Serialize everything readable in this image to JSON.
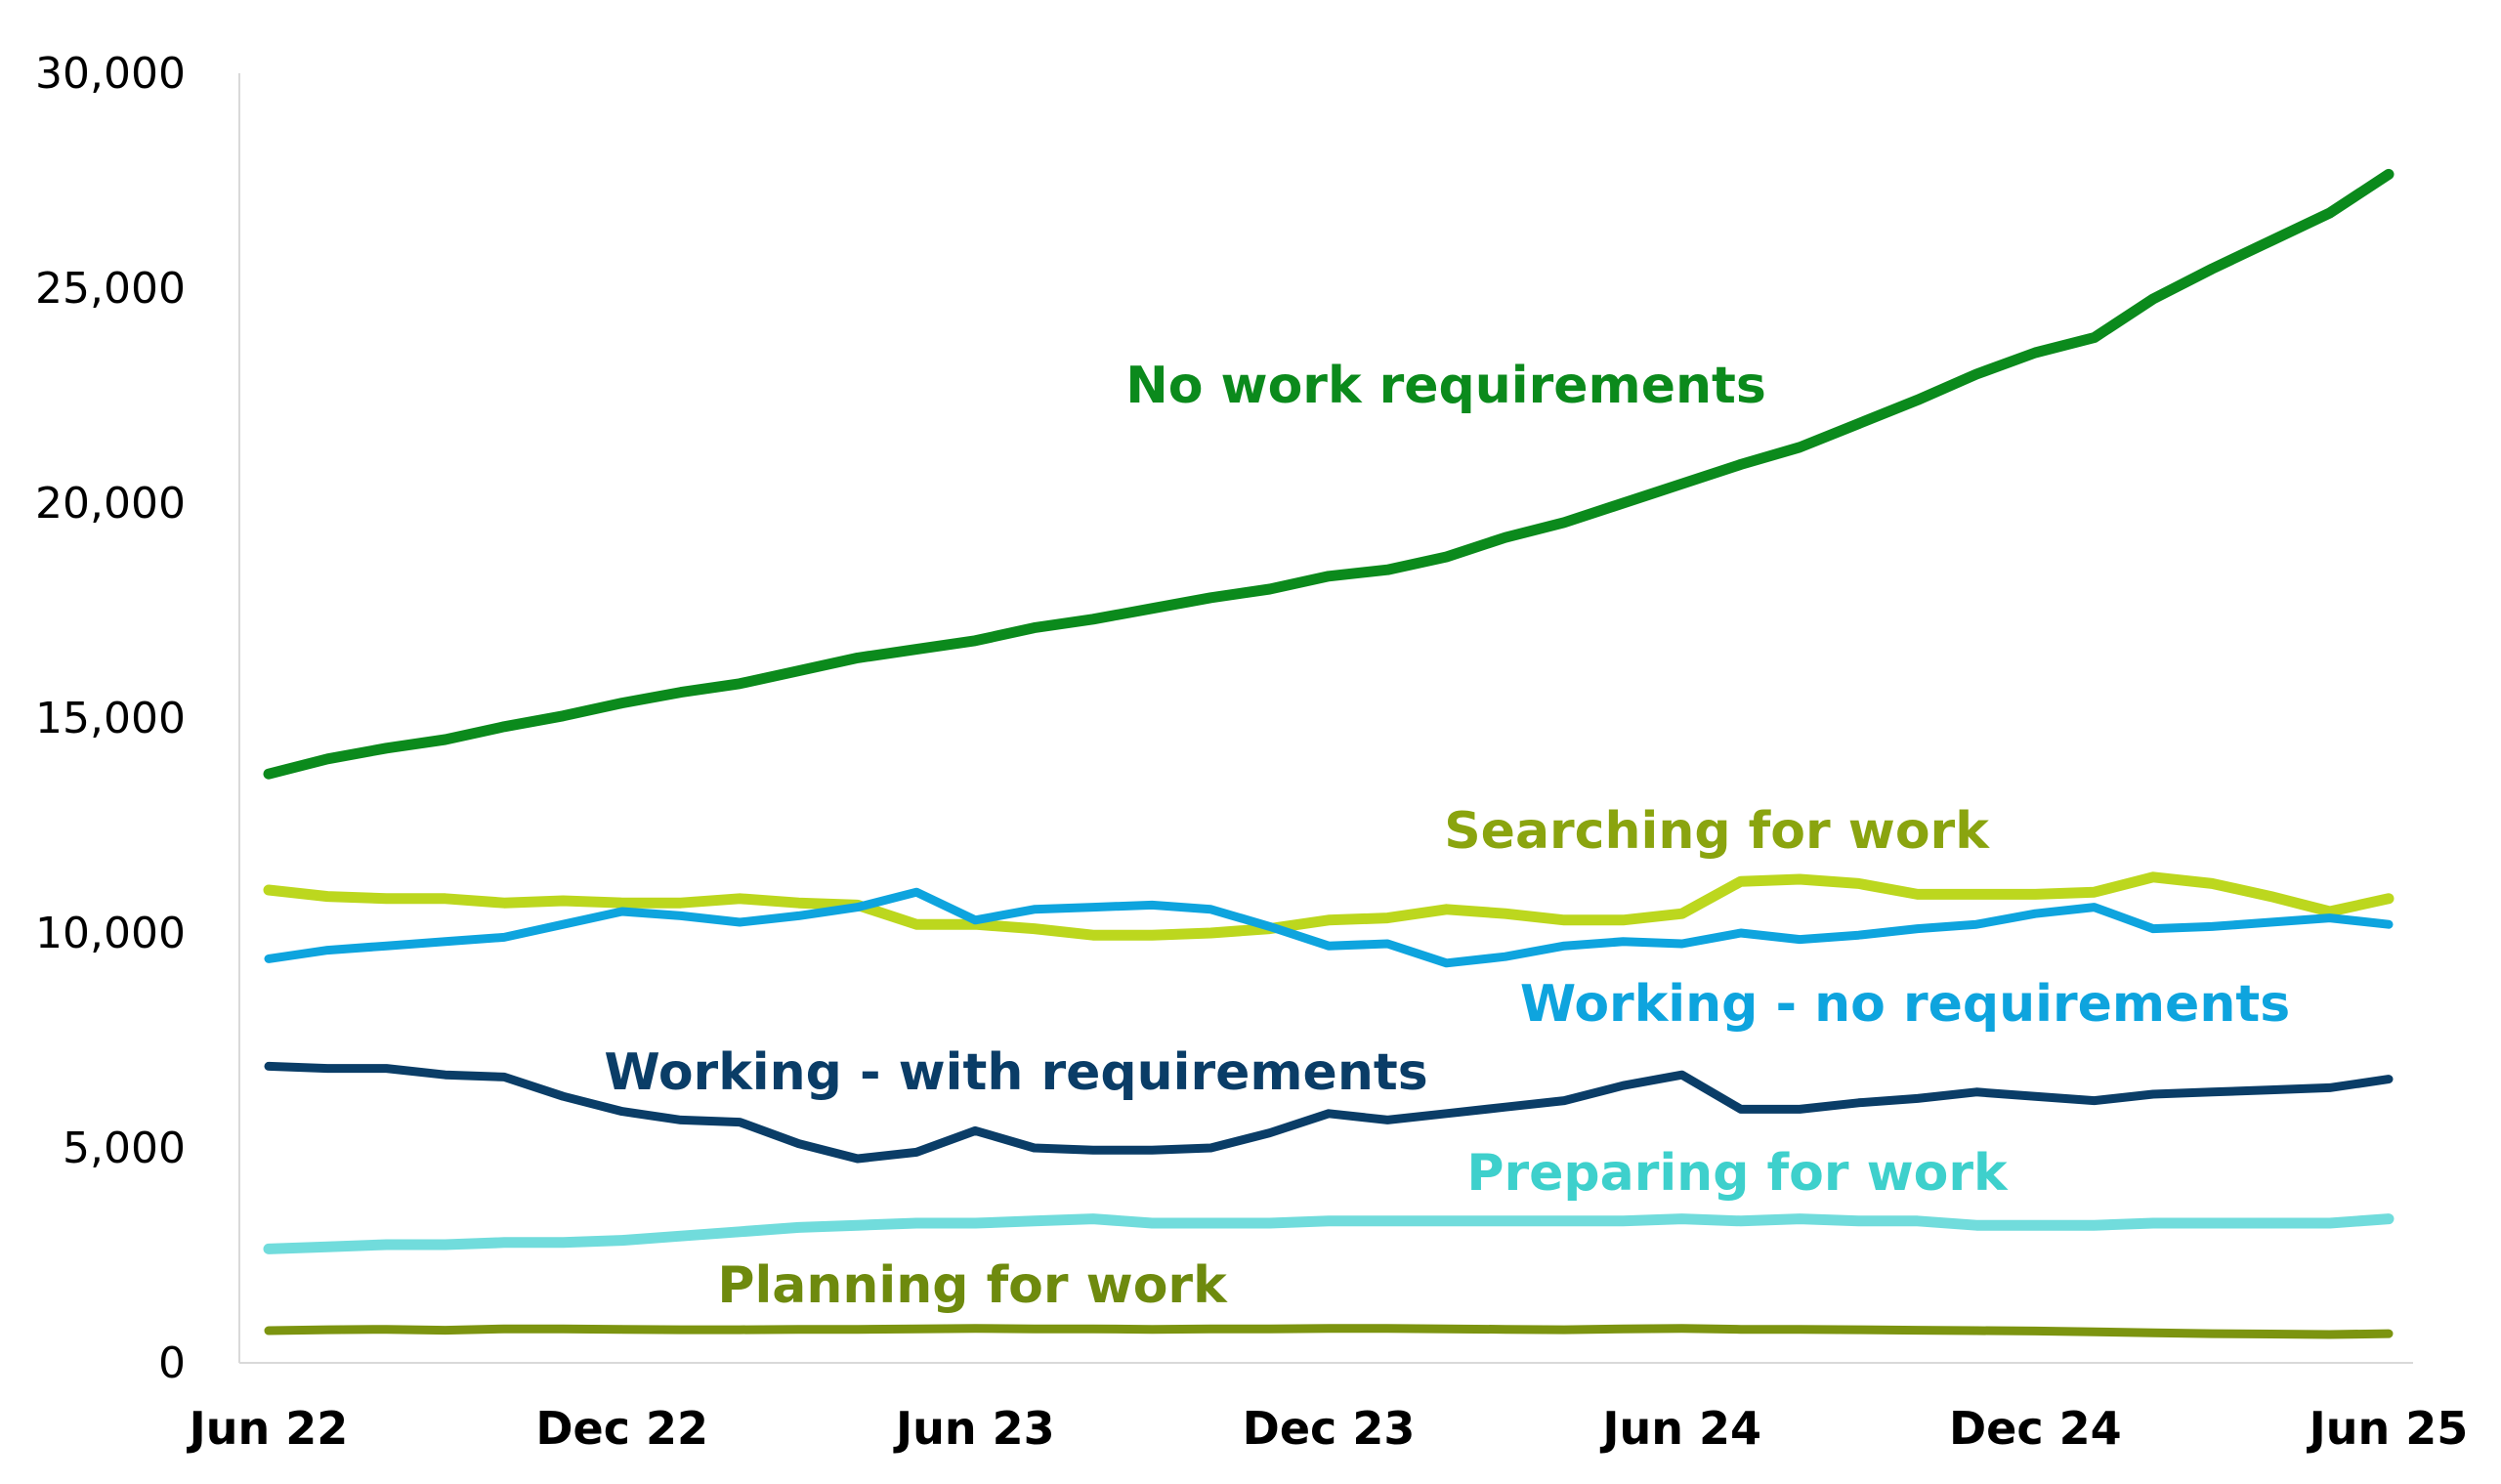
{
  "chart_data": {
    "type": "line",
    "title": "",
    "xlabel": "",
    "ylabel": "",
    "ylim": [
      0,
      30000
    ],
    "y_ticks": [
      "0",
      "5,000",
      "10,000",
      "15,000",
      "20,000",
      "25,000",
      "30,000"
    ],
    "x_ticks": [
      "Jun 22",
      "Dec 22",
      "Jun 23",
      "Dec 23",
      "Jun 24",
      "Dec 24",
      "Jun 25"
    ],
    "x": [
      "Jun 22",
      "Jul 22",
      "Aug 22",
      "Sep 22",
      "Oct 22",
      "Nov 22",
      "Dec 22",
      "Jan 23",
      "Feb 23",
      "Mar 23",
      "Apr 23",
      "May 23",
      "Jun 23",
      "Jul 23",
      "Aug 23",
      "Sep 23",
      "Oct 23",
      "Nov 23",
      "Dec 23",
      "Jan 24",
      "Feb 24",
      "Mar 24",
      "Apr 24",
      "May 24",
      "Jun 24",
      "Jul 24",
      "Aug 24",
      "Sep 24",
      "Oct 24",
      "Nov 24",
      "Dec 24",
      "Jan 25",
      "Feb 25",
      "Mar 25",
      "Apr 25",
      "May 25",
      "Jun 25"
    ],
    "grid": false,
    "legend": "none",
    "series": [
      {
        "name": "No work requirements",
        "color": "#0b8a1c",
        "values": [
          13700,
          14050,
          14300,
          14500,
          14800,
          15050,
          15350,
          15600,
          15800,
          16100,
          16400,
          16600,
          16800,
          17100,
          17300,
          17550,
          17800,
          18000,
          18300,
          18450,
          18750,
          19200,
          19550,
          20000,
          20450,
          20900,
          21300,
          21850,
          22400,
          23000,
          23500,
          23850,
          24750,
          25450,
          26100,
          26750,
          27650
        ]
      },
      {
        "name": "Searching for work",
        "color": "#bcd71e",
        "values": [
          11000,
          10850,
          10800,
          10800,
          10700,
          10750,
          10700,
          10700,
          10800,
          10700,
          10650,
          10200,
          10200,
          10100,
          9950,
          9950,
          10000,
          10100,
          10300,
          10350,
          10550,
          10450,
          10300,
          10300,
          10450,
          11200,
          11250,
          11150,
          10900,
          10900,
          10900,
          10950,
          11300,
          11150,
          10850,
          10500,
          10800
        ]
      },
      {
        "name": "Working - no requirements",
        "color": "#0ea4de",
        "values": [
          9400,
          9600,
          9700,
          9800,
          9900,
          10200,
          10500,
          10400,
          10250,
          10400,
          10600,
          10950,
          10300,
          10550,
          10600,
          10650,
          10550,
          10150,
          9700,
          9750,
          9300,
          9450,
          9700,
          9800,
          9750,
          10000,
          9850,
          9950,
          10100,
          10200,
          10450,
          10600,
          10100,
          10150,
          10250,
          10350,
          10200
        ]
      },
      {
        "name": "Working - with requirements",
        "color": "#0a3d67",
        "values": [
          6900,
          6850,
          6850,
          6700,
          6650,
          6200,
          5850,
          5650,
          5600,
          5100,
          4750,
          4900,
          5400,
          5000,
          4950,
          4950,
          5000,
          5350,
          5800,
          5650,
          5800,
          5950,
          6100,
          6450,
          6700,
          5900,
          5900,
          6050,
          6150,
          6300,
          6200,
          6100,
          6250,
          6300,
          6350,
          6400,
          6600
        ]
      },
      {
        "name": "Preparing for work",
        "color": "#71dcdc",
        "values": [
          2650,
          2700,
          2750,
          2750,
          2800,
          2800,
          2850,
          2950,
          3050,
          3150,
          3200,
          3250,
          3250,
          3300,
          3350,
          3250,
          3250,
          3250,
          3300,
          3300,
          3300,
          3300,
          3300,
          3300,
          3350,
          3300,
          3350,
          3300,
          3300,
          3200,
          3200,
          3200,
          3250,
          3250,
          3250,
          3250,
          3350
        ]
      },
      {
        "name": "Planning for work",
        "color": "#7c9410",
        "values": [
          750,
          770,
          780,
          760,
          790,
          790,
          780,
          770,
          770,
          780,
          780,
          790,
          800,
          790,
          790,
          780,
          790,
          790,
          800,
          800,
          790,
          780,
          770,
          790,
          800,
          780,
          780,
          770,
          760,
          750,
          740,
          720,
          700,
          680,
          670,
          660,
          680
        ]
      }
    ],
    "labels": [
      {
        "text": "No work requirements",
        "color": "#0b8a1c"
      },
      {
        "text": "Searching for work",
        "color": "#8aa40f"
      },
      {
        "text": "Working - no requirements",
        "color": "#0ea4de"
      },
      {
        "text": "Working - with requirements",
        "color": "#0a3d67"
      },
      {
        "text": "Preparing for work",
        "color": "#3ed0cc"
      },
      {
        "text": "Planning for work",
        "color": "#6e8a0e"
      }
    ]
  }
}
